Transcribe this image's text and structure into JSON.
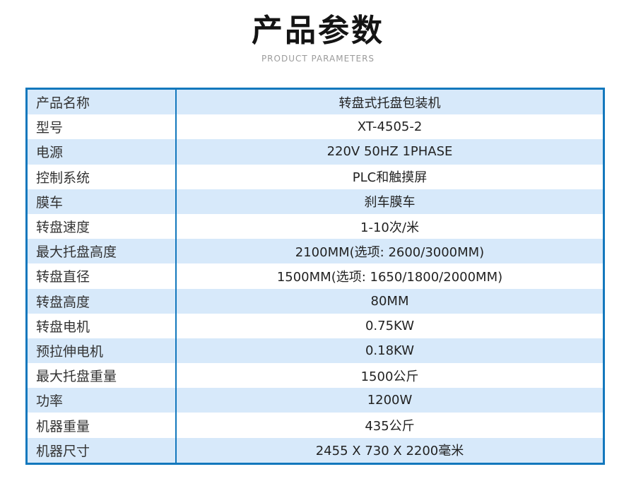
{
  "header": {
    "title": "产品参数",
    "subtitle": "PRODUCT PARAMETERS"
  },
  "colors": {
    "table_border_blue": "#1378bd",
    "row_alt_light_blue": "#d7e9fa",
    "row_white": "#ffffff",
    "title_black": "#141414",
    "subtitle_gray": "#9b9b9b"
  },
  "table": {
    "rows": [
      {
        "label": "产品名称",
        "value": "转盘式托盘包装机"
      },
      {
        "label": "型号",
        "value": "XT-4505-2"
      },
      {
        "label": "电源",
        "value": "220V 50HZ 1PHASE"
      },
      {
        "label": "控制系统",
        "value": "PLC和触摸屏"
      },
      {
        "label": "膜车",
        "value": "刹车膜车"
      },
      {
        "label": "转盘速度",
        "value": "1-10次/米"
      },
      {
        "label": "最大托盘高度",
        "value": "2100MM(选项: 2600/3000MM)"
      },
      {
        "label": "转盘直径",
        "value": "1500MM(选项: 1650/1800/2000MM)"
      },
      {
        "label": "转盘高度",
        "value": "80MM"
      },
      {
        "label": "转盘电机",
        "value": "0.75KW"
      },
      {
        "label": "预拉伸电机",
        "value": "0.18KW"
      },
      {
        "label": "最大托盘重量",
        "value": "1500公斤"
      },
      {
        "label": "功率",
        "value": "1200W"
      },
      {
        "label": "机器重量",
        "value": "435公斤"
      },
      {
        "label": "机器尺寸",
        "value": "2455 X 730 X 2200毫米"
      }
    ]
  }
}
